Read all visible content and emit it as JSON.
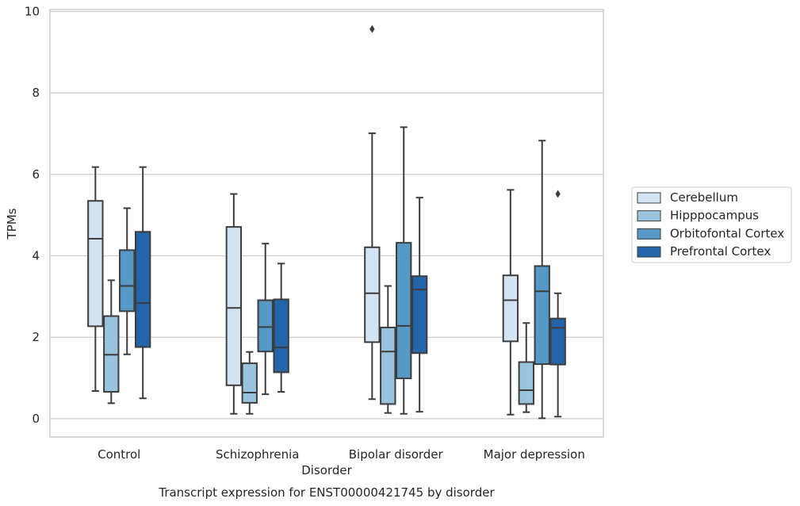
{
  "chart_data": {
    "type": "box",
    "title": "",
    "caption": "Transcript expression for ENST00000421745 by disorder",
    "xlabel": "Disorder",
    "ylabel": "TPMs",
    "ylim": [
      -0.45,
      10.05
    ],
    "yticks": [
      "0",
      "2",
      "4",
      "6",
      "8",
      "10"
    ],
    "grid": true,
    "legend_position": "right",
    "categories": [
      "Control",
      "Schizophrenia",
      "Bipolar disorder",
      "Major depression"
    ],
    "series": [
      {
        "name": "Cerebellum",
        "color": "#d3e3f2",
        "boxes": [
          {
            "whislo": 0.68,
            "q1": 2.27,
            "med": 4.42,
            "q3": 5.35,
            "whishi": 6.18,
            "fliers": []
          },
          {
            "whislo": 0.12,
            "q1": 0.82,
            "med": 2.72,
            "q3": 4.71,
            "whishi": 5.52,
            "fliers": []
          },
          {
            "whislo": 0.48,
            "q1": 1.88,
            "med": 3.08,
            "q3": 4.21,
            "whishi": 7.01,
            "fliers": [
              9.57
            ]
          },
          {
            "whislo": 0.1,
            "q1": 1.9,
            "med": 2.91,
            "q3": 3.52,
            "whishi": 5.62,
            "fliers": []
          }
        ]
      },
      {
        "name": "Hipppocampus",
        "color": "#9ac4dd",
        "boxes": [
          {
            "whislo": 0.38,
            "q1": 0.66,
            "med": 1.57,
            "q3": 2.52,
            "whishi": 3.4,
            "fliers": []
          },
          {
            "whislo": 0.12,
            "q1": 0.39,
            "med": 0.64,
            "q3": 1.36,
            "whishi": 1.64,
            "fliers": []
          },
          {
            "whislo": 0.14,
            "q1": 0.36,
            "med": 1.65,
            "q3": 2.24,
            "whishi": 3.26,
            "fliers": []
          },
          {
            "whislo": 0.16,
            "q1": 0.36,
            "med": 0.7,
            "q3": 1.39,
            "whishi": 2.35,
            "fliers": []
          }
        ]
      },
      {
        "name": "Orbitofontal Cortex",
        "color": "#5698c6",
        "boxes": [
          {
            "whislo": 1.58,
            "q1": 2.64,
            "med": 3.26,
            "q3": 4.14,
            "whishi": 5.17,
            "fliers": []
          },
          {
            "whislo": 0.6,
            "q1": 1.65,
            "med": 2.25,
            "q3": 2.91,
            "whishi": 4.3,
            "fliers": []
          },
          {
            "whislo": 0.12,
            "q1": 0.99,
            "med": 2.28,
            "q3": 4.32,
            "whishi": 7.16,
            "fliers": []
          },
          {
            "whislo": 0.01,
            "q1": 1.34,
            "med": 3.13,
            "q3": 3.75,
            "whishi": 6.83,
            "fliers": []
          }
        ]
      },
      {
        "name": "Prefrontal Cortex",
        "color": "#2464a8",
        "boxes": [
          {
            "whislo": 0.5,
            "q1": 1.76,
            "med": 2.84,
            "q3": 4.59,
            "whishi": 6.18,
            "fliers": []
          },
          {
            "whislo": 0.66,
            "q1": 1.14,
            "med": 1.75,
            "q3": 2.93,
            "whishi": 3.81,
            "fliers": []
          },
          {
            "whislo": 0.17,
            "q1": 1.61,
            "med": 3.17,
            "q3": 3.5,
            "whishi": 5.43,
            "fliers": []
          },
          {
            "whislo": 0.05,
            "q1": 1.33,
            "med": 2.23,
            "q3": 2.46,
            "whishi": 3.08,
            "fliers": [
              5.52
            ]
          }
        ]
      }
    ]
  }
}
